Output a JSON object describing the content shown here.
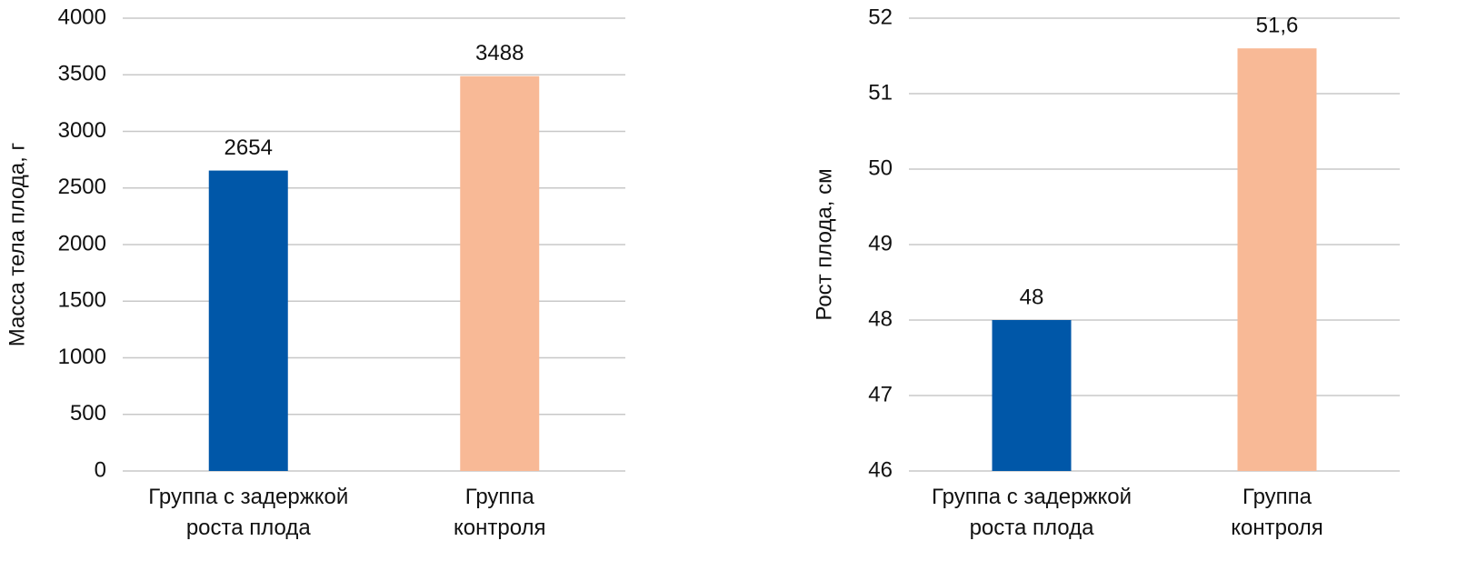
{
  "chart_data": [
    {
      "type": "bar",
      "y_label": "Масса тела плода, г",
      "categories": [
        [
          "Группа с задержкой",
          "роста плода"
        ],
        [
          "Группа",
          "контроля"
        ]
      ],
      "values": [
        2654,
        3488
      ],
      "colors": [
        "#0057a8",
        "#f8b996"
      ],
      "ylim": [
        0,
        4000
      ],
      "yticks": [
        0,
        500,
        1000,
        1500,
        2000,
        2500,
        3000,
        3500,
        4000
      ],
      "grid": true
    },
    {
      "type": "bar",
      "y_label": "Рост плода, см",
      "categories": [
        [
          "Группа с задержкой",
          "роста плода"
        ],
        [
          "Группа",
          "контроля"
        ]
      ],
      "values": [
        48,
        51.6
      ],
      "value_labels": [
        "48",
        "51,6"
      ],
      "colors": [
        "#0057a8",
        "#f8b996"
      ],
      "ylim": [
        46,
        52
      ],
      "yticks": [
        46,
        47,
        48,
        49,
        50,
        51,
        52
      ],
      "grid": true
    }
  ]
}
